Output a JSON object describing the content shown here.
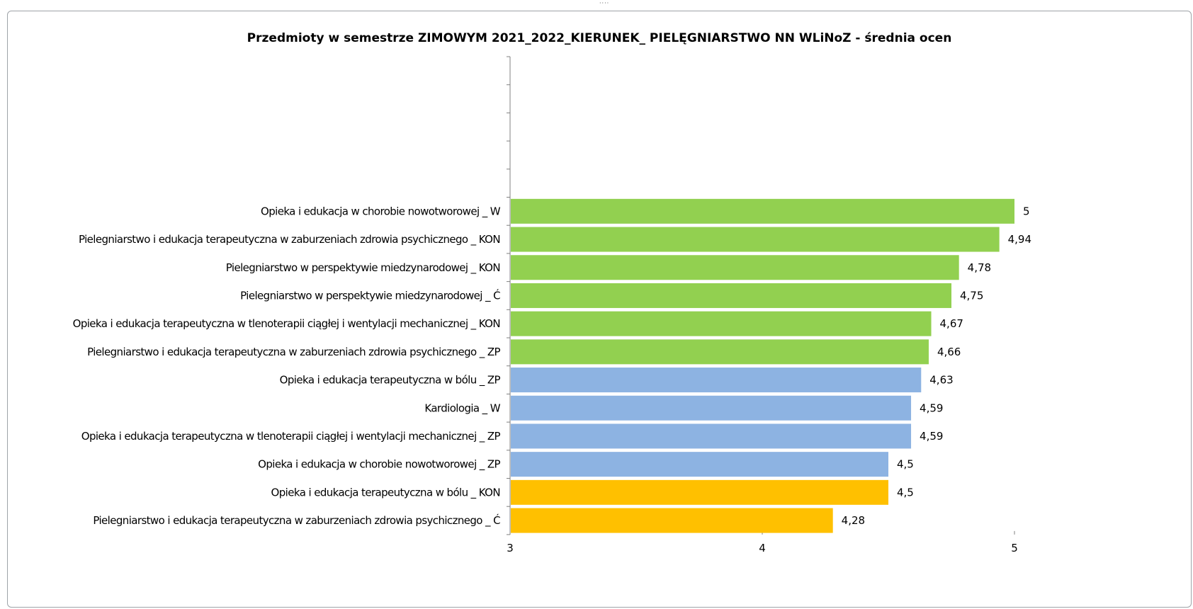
{
  "chart_data": {
    "type": "bar",
    "orientation": "horizontal",
    "title": "Przedmioty w semestrze ZIMOWYM 2021_2022_KIERUNEK_  PIELĘGNIARSTWO  NN WLiNoZ - średnia ocen",
    "xlabel": "",
    "ylabel": "",
    "xlim": [
      3,
      5
    ],
    "x_ticks": [
      "3",
      "4",
      "5"
    ],
    "grid": false,
    "legend": "none",
    "empty_slots_above": 5,
    "categories": [
      "Opieka i edukacja w chorobie nowotworowej _ W",
      "Pielegniarstwo i edukacja terapeutyczna w zaburzeniach zdrowia psychicznego _ KON",
      "Pielegniarstwo w perspektywie miedzynarodowej _ KON",
      "Pielegniarstwo w perspektywie miedzynarodowej _ Ć",
      "Opieka i edukacja terapeutyczna w tlenoterapii ciągłej i wentylacji mechanicznej _ KON",
      "Pielegniarstwo i edukacja terapeutyczna w zaburzeniach zdrowia psychicznego _ ZP",
      "Opieka i edukacja terapeutyczna w bólu _ ZP",
      "Kardiologia _ W",
      "Opieka i edukacja terapeutyczna w tlenoterapii ciągłej i wentylacji mechanicznej _ ZP",
      "Opieka i edukacja w chorobie nowotworowej _ ZP",
      "Opieka i edukacja terapeutyczna w bólu _ KON",
      "Pielegniarstwo i edukacja terapeutyczna w zaburzeniach zdrowia psychicznego _ Ć"
    ],
    "values": [
      5,
      4.94,
      4.78,
      4.75,
      4.67,
      4.66,
      4.63,
      4.59,
      4.59,
      4.5,
      4.5,
      4.28
    ],
    "value_labels": [
      "5",
      "4,94",
      "4,78",
      "4,75",
      "4,67",
      "4,66",
      "4,63",
      "4,59",
      "4,59",
      "4,5",
      "4,5",
      "4,28"
    ],
    "bar_colors": [
      "#92d050",
      "#92d050",
      "#92d050",
      "#92d050",
      "#92d050",
      "#92d050",
      "#8db3e2",
      "#8db3e2",
      "#8db3e2",
      "#8db3e2",
      "#ffc000",
      "#ffc000"
    ]
  },
  "colors": {
    "green": "#92d050",
    "blue": "#8db3e2",
    "orange": "#ffc000",
    "axis": "#808080",
    "frame": "#9ea3a8"
  }
}
